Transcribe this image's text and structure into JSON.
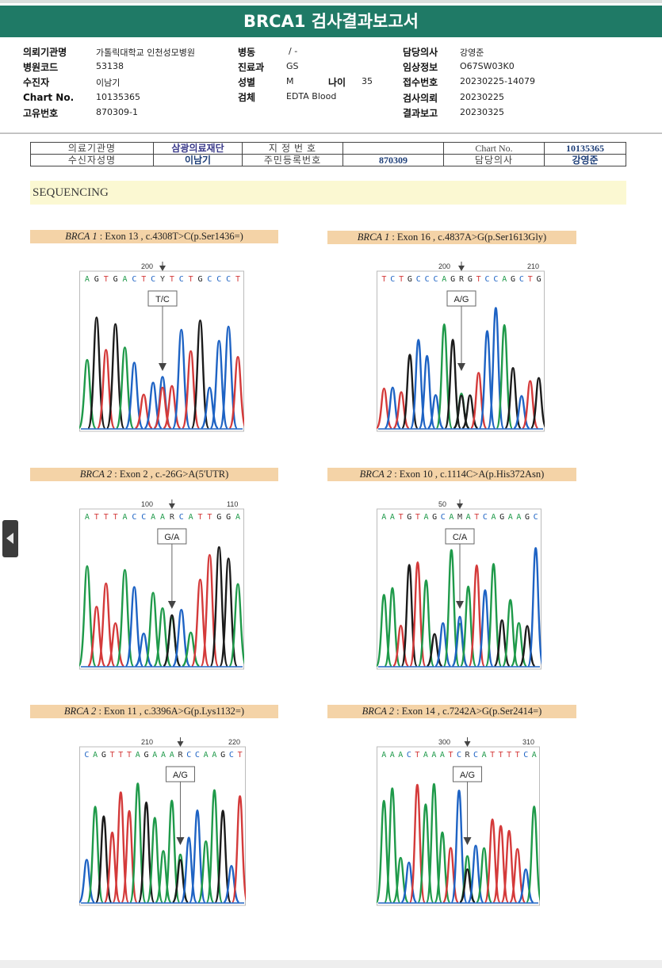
{
  "report": {
    "title": "BRCA1 검사결과보고서"
  },
  "header": {
    "institution_label": "의뢰기관명",
    "institution_value": "가톨릭대학교 인천성모병원",
    "hospcode_label": "병원코드",
    "hospcode_value": "53138",
    "recipient_label": "수진자",
    "recipient_value": "이남기",
    "chartno_label": "Chart No.",
    "chartno_value": "10135365",
    "uid_label": "고유번호",
    "uid_value": "870309-1",
    "ward_label": "병동",
    "ward_value": "/ -",
    "dept_label": "진료과",
    "dept_value": "GS",
    "sex_label": "성별",
    "sex_value": "M",
    "age_label": "나이",
    "age_value": "35",
    "specimen_label": "검체",
    "specimen_value": "EDTA Blood",
    "doctor_label": "담당의사",
    "doctor_value": "강영준",
    "clinical_label": "임상정보",
    "clinical_value": "O67SW03K0",
    "receipt_label": "접수번호",
    "receipt_value": "20230225-14079",
    "request_label": "검사의뢰",
    "request_value": "20230225",
    "result_label": "결과보고",
    "result_value": "20230325"
  },
  "doc_table": {
    "inst_label": "의료기관명",
    "inst_value": "삼광의료재단",
    "desig_label": "지 정 번 호",
    "desig_value": "",
    "chart_label": "Chart No.",
    "chart_value": "10135365",
    "recv_label": "수신자성명",
    "recv_value": "이남기",
    "resid_label": "주민등록번호",
    "resid_value": "870309",
    "doc_label": "담당의사",
    "doc_value": "강영준"
  },
  "section": {
    "sequencing_title": "SEQUENCING"
  },
  "panels": [
    {
      "gene": "BRCA 1",
      "desc": " : Exon 13 , c.4308T>C(p.Ser1436=)",
      "seq": "AGTGACTCYTCTGCCCT",
      "call": "T/C",
      "ticks": [
        "200"
      ]
    },
    {
      "gene": "BRCA 1",
      "desc": " : Exon 16 , c.4837A>G(p.Ser1613Gly)",
      "seq": "TCTGCCCAGRGTCCAGCTG",
      "call": "A/G",
      "ticks": [
        "200",
        "210"
      ]
    },
    {
      "gene": "BRCA 2",
      "desc": " : Exon 2 , c.-26G>A(5'UTR)",
      "seq": "ATTTACCAARCATTGGA",
      "call": "G/A",
      "ticks": [
        "100",
        "110"
      ]
    },
    {
      "gene": "BRCA 2",
      "desc": " : Exon 10 , c.1114C>A(p.His372Asn)",
      "seq": "AATGTAGCAMATCAGAAGC",
      "call": "C/A",
      "ticks": [
        "50"
      ]
    },
    {
      "gene": "BRCA 2",
      "desc": " : Exon 11 , c.3396A>G(p.Lys1132=)",
      "seq": "CAGTTTAGAAARCCAAGCT",
      "call": "A/G",
      "ticks": [
        "210",
        "220"
      ]
    },
    {
      "gene": "BRCA 2",
      "desc": " : Exon 14 , c.7242A>G(p.Ser2414=)",
      "seq": "AAACTAAATCRCATTTTCA",
      "call": "A/G",
      "ticks": [
        "300",
        "310"
      ]
    }
  ],
  "colors": {
    "brand": "#1f7a66",
    "A": "#1f9a4a",
    "C": "#1e63c4",
    "G": "#1b1b1b",
    "T": "#d43a3a",
    "label_bg": "#f4d3a7"
  }
}
